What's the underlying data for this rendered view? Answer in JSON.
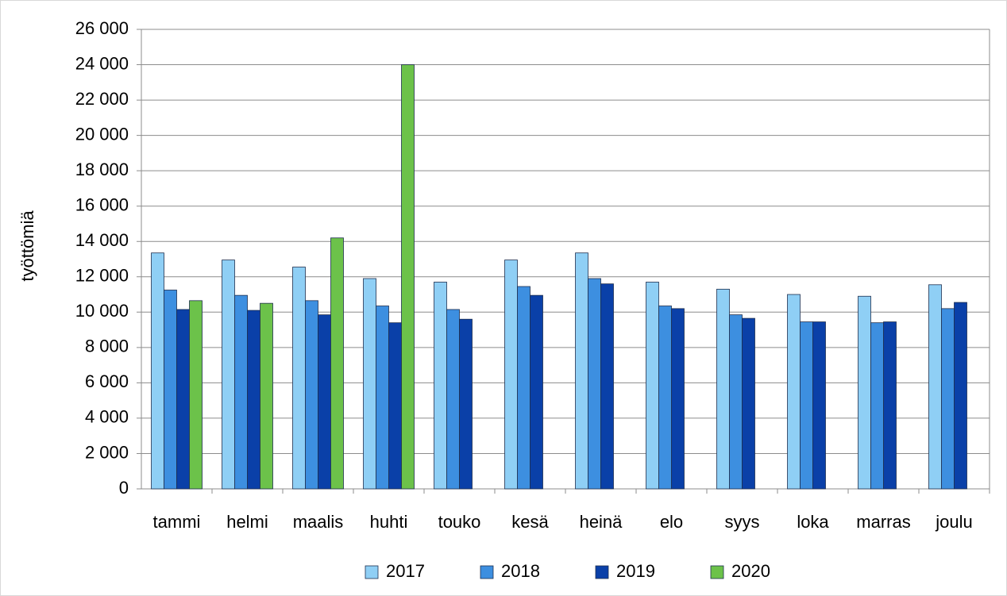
{
  "chart_data": {
    "type": "bar",
    "y_label": "työttömiä",
    "categories": [
      "tammi",
      "helmi",
      "maalis",
      "huhti",
      "touko",
      "kesä",
      "heinä",
      "elo",
      "syys",
      "loka",
      "marras",
      "joulu"
    ],
    "series": [
      {
        "name": "2017",
        "color": "#8fcff5",
        "values": [
          13350,
          12950,
          12550,
          11900,
          11700,
          12950,
          13350,
          11700,
          11300,
          11000,
          10900,
          11550
        ]
      },
      {
        "name": "2018",
        "color": "#3d8fe0",
        "values": [
          11250,
          10950,
          10650,
          10350,
          10150,
          11450,
          11900,
          10350,
          9850,
          9450,
          9400,
          10200
        ]
      },
      {
        "name": "2019",
        "color": "#0a40a8",
        "values": [
          10150,
          10100,
          9850,
          9400,
          9600,
          10950,
          11600,
          10200,
          9650,
          9450,
          9450,
          10550
        ]
      },
      {
        "name": "2020",
        "color": "#6cc24a",
        "values": [
          10650,
          10500,
          14200,
          24000,
          null,
          null,
          null,
          null,
          null,
          null,
          null,
          null
        ]
      }
    ],
    "ylim": [
      0,
      26000
    ],
    "yticks": [
      0,
      {
        "value": 2000,
        "label": "2 000"
      },
      {
        "value": 4000,
        "label": "4 000"
      },
      {
        "value": 6000,
        "label": "6 000"
      },
      {
        "value": 8000,
        "label": "8 000"
      },
      {
        "value": 10000,
        "label": "10 000"
      },
      {
        "value": 12000,
        "label": "12 000"
      },
      {
        "value": 14000,
        "label": "14 000"
      },
      {
        "value": 16000,
        "label": "16 000"
      },
      {
        "value": 18000,
        "label": "18 000"
      },
      {
        "value": 20000,
        "label": "20 000"
      },
      {
        "value": 22000,
        "label": "22 000"
      },
      {
        "value": 24000,
        "label": "24 000"
      },
      {
        "value": 26000,
        "label": "26 000"
      }
    ],
    "grid": true,
    "legend": "bottom"
  }
}
